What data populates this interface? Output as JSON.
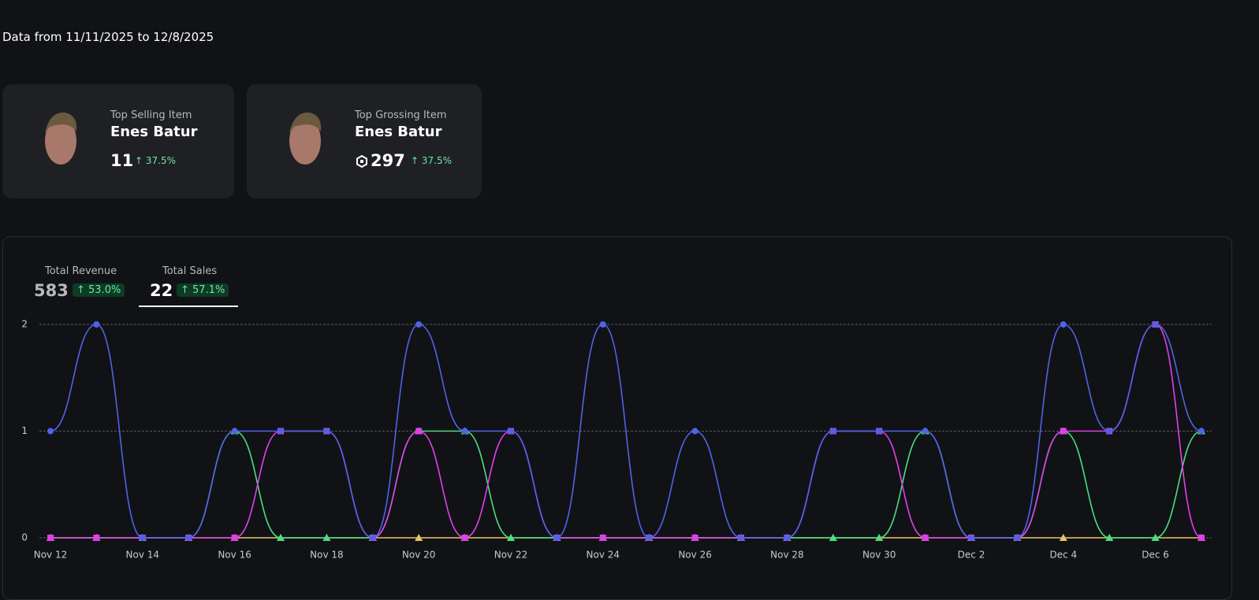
{
  "header": {
    "range": "Data from 11/11/2025 to 12/8/2025"
  },
  "cards": [
    {
      "label": "Top Selling Item",
      "name": "Enes Batur",
      "value": "11",
      "change": "37.5%"
    },
    {
      "label": "Top Grossing Item",
      "name": "Enes Batur",
      "value": "297",
      "change": "37.5%"
    }
  ],
  "tabs": [
    {
      "label": "Total Revenue",
      "value": "583",
      "change": "53.0%"
    },
    {
      "label": "Total Sales",
      "value": "22",
      "change": "57.1%"
    }
  ],
  "chart_data": {
    "type": "line",
    "smooth": true,
    "grid": true,
    "categories": [
      "Nov 12",
      null,
      "Nov 14",
      null,
      "Nov 16",
      null,
      "Nov 18",
      null,
      "Nov 20",
      null,
      "Nov 22",
      null,
      "Nov 24",
      null,
      "Nov 26",
      null,
      "Nov 28",
      null,
      "Nov 30",
      null,
      "Dec 2",
      null,
      "Dec 4",
      null,
      "Dec 6",
      null
    ],
    "ylim": [
      0,
      2
    ],
    "yticks": [
      0,
      1,
      2
    ],
    "series": [
      {
        "color": "#e9c46a",
        "marker": "triangle",
        "values": [
          0,
          0,
          0,
          0,
          0,
          0,
          0,
          0,
          0,
          0,
          0,
          0,
          0,
          0,
          0,
          0,
          0,
          0,
          0,
          0,
          0,
          0,
          0,
          0,
          0,
          0
        ]
      },
      {
        "color": "#4ade80",
        "marker": "triangle",
        "values": [
          0,
          0,
          0,
          0,
          1,
          0,
          0,
          0,
          1,
          1,
          0,
          0,
          0,
          0,
          0,
          0,
          0,
          0,
          0,
          1,
          0,
          0,
          1,
          0,
          0,
          1
        ]
      },
      {
        "color": "#e040e8",
        "marker": "square",
        "values": [
          0,
          0,
          0,
          0,
          0,
          1,
          1,
          0,
          1,
          0,
          1,
          0,
          0,
          0,
          0,
          0,
          0,
          1,
          1,
          0,
          0,
          0,
          1,
          1,
          2,
          0
        ]
      },
      {
        "color": "#4f63e8",
        "marker": "circle",
        "values": [
          1,
          2,
          0,
          0,
          1,
          1,
          1,
          0,
          2,
          1,
          1,
          0,
          2,
          0,
          1,
          0,
          0,
          1,
          1,
          1,
          0,
          0,
          2,
          1,
          2,
          1
        ]
      }
    ]
  }
}
